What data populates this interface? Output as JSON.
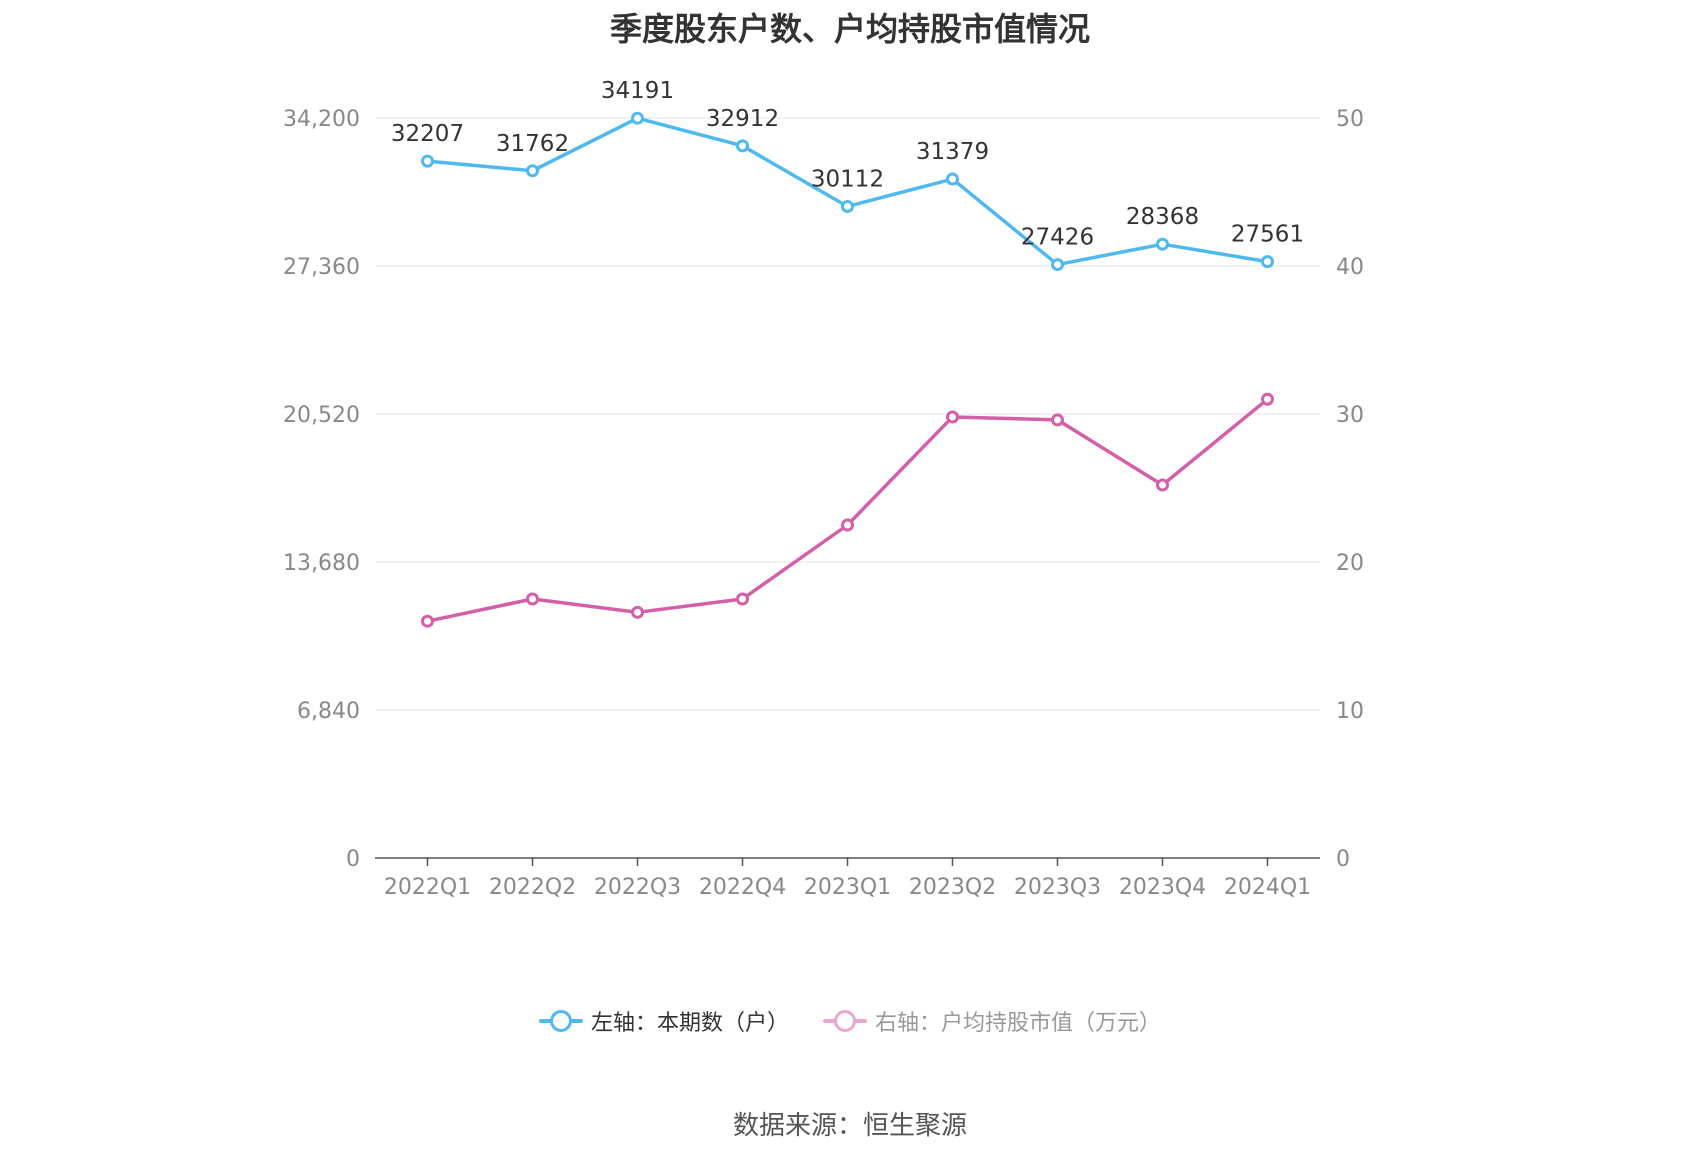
{
  "title": "季度股东户数、户均持股市值情况",
  "source": "数据来源：恒生聚源",
  "legend": [
    {
      "label": "左轴：本期数（户）",
      "color": "#4fb9ef",
      "active": true
    },
    {
      "label": "右轴：户均持股市值（万元）",
      "color": "#e9a8d0",
      "active": false
    }
  ],
  "chart_data": {
    "type": "line",
    "categories": [
      "2022Q1",
      "2022Q2",
      "2022Q3",
      "2022Q4",
      "2023Q1",
      "2023Q2",
      "2023Q3",
      "2023Q4",
      "2024Q1"
    ],
    "y_left": {
      "ticks": [
        0,
        6840,
        13680,
        20520,
        27360,
        34200
      ],
      "tick_labels": [
        "0",
        "6,840",
        "13,680",
        "20,520",
        "27,360",
        "34,200"
      ],
      "range": [
        0,
        34200
      ]
    },
    "y_right": {
      "ticks": [
        0,
        10,
        20,
        30,
        40,
        50
      ],
      "tick_labels": [
        "0",
        "10",
        "20",
        "30",
        "40",
        "50"
      ],
      "range": [
        0,
        50
      ]
    },
    "series": [
      {
        "name": "左轴：本期数（户）",
        "axis": "left",
        "color": "#4fb9ef",
        "show_labels": true,
        "values": [
          32207,
          31762,
          34191,
          32912,
          30112,
          31379,
          27426,
          28368,
          27561
        ]
      },
      {
        "name": "右轴：户均持股市值（万元）",
        "axis": "right",
        "color": "#d35fa9",
        "show_labels": false,
        "values": [
          16.0,
          17.5,
          16.6,
          17.5,
          22.5,
          29.8,
          29.6,
          25.2,
          31.0
        ]
      }
    ],
    "grid": true,
    "legend_position": "bottom"
  }
}
